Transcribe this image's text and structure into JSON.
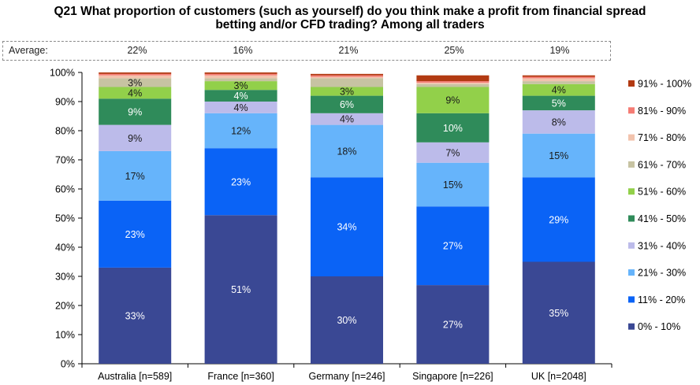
{
  "title": {
    "line1": "Q21 What proportion of customers (such as yourself) do you think make a profit from financial spread",
    "line2": "betting and/or CFD trading? Among all traders"
  },
  "average": {
    "label": "Average:",
    "values": [
      "22%",
      "16%",
      "21%",
      "25%",
      "19%"
    ]
  },
  "chart_data": {
    "type": "bar",
    "stacked": true,
    "percent_scale": true,
    "title": "Q21 What proportion of customers (such as yourself) do you think make a profit from financial spread betting and/or CFD trading? Among all traders",
    "categories": [
      "Australia [n=589]",
      "France [n=360]",
      "Germany [n=246]",
      "Singapore [n=226]",
      "UK [n=2048]"
    ],
    "y_ticks": [
      "0%",
      "10%",
      "20%",
      "30%",
      "40%",
      "50%",
      "60%",
      "70%",
      "80%",
      "90%",
      "100%"
    ],
    "ylim": [
      0,
      100
    ],
    "legend_position": "right",
    "series": [
      {
        "name": "0% - 10%",
        "color": "#3a4894",
        "label_color": "#ffffff",
        "values": [
          33,
          51,
          30,
          27,
          35
        ],
        "labels": [
          "33%",
          "51%",
          "30%",
          "27%",
          "35%"
        ]
      },
      {
        "name": "11% - 20%",
        "color": "#0a63f6",
        "label_color": "#ffffff",
        "values": [
          23,
          23,
          34,
          27,
          29
        ],
        "labels": [
          "23%",
          "23%",
          "34%",
          "27%",
          "29%"
        ]
      },
      {
        "name": "21% - 30%",
        "color": "#66b4fb",
        "label_color": "#1a1a1a",
        "values": [
          17,
          12,
          18,
          15,
          15
        ],
        "labels": [
          "17%",
          "12%",
          "18%",
          "15%",
          "15%"
        ]
      },
      {
        "name": "31% - 40%",
        "color": "#bcbbea",
        "label_color": "#1a1a1a",
        "values": [
          9,
          4,
          4,
          7,
          8
        ],
        "labels": [
          "9%",
          "4%",
          "4%",
          "7%",
          "8%"
        ]
      },
      {
        "name": "41% - 50%",
        "color": "#2f8b5a",
        "label_color": "#ffffff",
        "values": [
          9,
          4,
          6,
          10,
          5
        ],
        "labels": [
          "9%",
          "4%",
          "6%",
          "10%",
          "5%"
        ]
      },
      {
        "name": "51% - 60%",
        "color": "#92d04a",
        "label_color": "#1a1a1a",
        "values": [
          4,
          3,
          3,
          9,
          4
        ],
        "labels": [
          "4%",
          "3%",
          "3%",
          "9%",
          "4%"
        ]
      },
      {
        "name": "61% - 70%",
        "color": "#c7c3a2",
        "label_color": "#1a1a1a",
        "values": [
          3,
          1,
          3,
          1,
          1
        ],
        "labels": [
          "3%",
          "",
          "",
          "",
          ""
        ]
      },
      {
        "name": "71% - 80%",
        "color": "#f2c3ad",
        "label_color": "#1a1a1a",
        "values": [
          1,
          1,
          0.5,
          0.5,
          1
        ],
        "labels": [
          "",
          "",
          "",
          "",
          ""
        ]
      },
      {
        "name": "81% - 90%",
        "color": "#f57c74",
        "label_color": "#1a1a1a",
        "values": [
          0.5,
          0.5,
          0.5,
          0.5,
          0.5
        ],
        "labels": [
          "",
          "",
          "",
          "",
          ""
        ]
      },
      {
        "name": "91% - 100%",
        "color": "#b23a12",
        "label_color": "#1a1a1a",
        "values": [
          0.5,
          0.5,
          0.5,
          2,
          0.5
        ],
        "labels": [
          "",
          "",
          "",
          "",
          ""
        ]
      }
    ]
  }
}
